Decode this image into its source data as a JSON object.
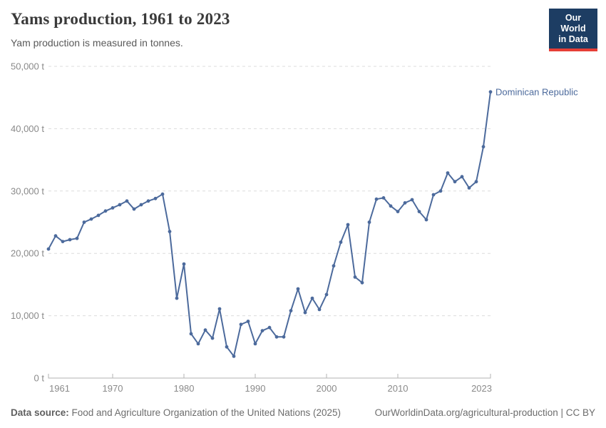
{
  "colors": {
    "series": "#4c6a9c",
    "grid": "#dcdcdc",
    "axis_line": "#b3b3b3",
    "axis_text": "#8a8a8a",
    "logo_bg": "#1d3d63",
    "logo_red": "#e63e36"
  },
  "logo": {
    "line1": "Our World",
    "line2": "in Data"
  },
  "footer": {
    "source_label": "Data source:",
    "source_text": " Food and Agriculture Organization of the United Nations (2025)",
    "right_text": "OurWorldinData.org/agricultural-production | CC BY"
  },
  "chart_data": {
    "type": "line",
    "title": "Yams production, 1961 to 2023",
    "subtitle": "Yam production is measured in tonnes.",
    "xlabel": "",
    "ylabel": "",
    "xlim": [
      1961,
      2023
    ],
    "ylim": [
      0,
      50000
    ],
    "grid": "horizontal-dashed",
    "legend_position": "end-of-line",
    "x": [
      1961,
      1962,
      1963,
      1964,
      1965,
      1966,
      1967,
      1968,
      1969,
      1970,
      1971,
      1972,
      1973,
      1974,
      1975,
      1976,
      1977,
      1978,
      1979,
      1980,
      1981,
      1982,
      1983,
      1984,
      1985,
      1986,
      1987,
      1988,
      1989,
      1990,
      1991,
      1992,
      1993,
      1994,
      1995,
      1996,
      1997,
      1998,
      1999,
      2000,
      2001,
      2002,
      2003,
      2004,
      2005,
      2006,
      2007,
      2008,
      2009,
      2010,
      2011,
      2012,
      2013,
      2014,
      2015,
      2016,
      2017,
      2018,
      2019,
      2020,
      2021,
      2022,
      2023
    ],
    "series": [
      {
        "name": "Dominican Republic",
        "color": "#4c6a9c",
        "values": [
          20700,
          22800,
          21900,
          22200,
          22400,
          25000,
          25500,
          26100,
          26800,
          27300,
          27800,
          28400,
          27100,
          27800,
          28400,
          28800,
          29500,
          23500,
          12800,
          18300,
          7100,
          5500,
          7700,
          6400,
          11100,
          5000,
          3500,
          8600,
          9100,
          5500,
          7600,
          8100,
          6600,
          6600,
          10800,
          14300,
          10500,
          12800,
          11000,
          13400,
          18000,
          21800,
          24600,
          16200,
          15300,
          25000,
          28700,
          28900,
          27600,
          26700,
          28100,
          28600,
          26700,
          25400,
          29400,
          30000,
          32900,
          31500,
          32300,
          30500,
          31500,
          37100,
          45900
        ]
      }
    ],
    "yticks": {
      "values": [
        0,
        10000,
        20000,
        30000,
        40000,
        50000
      ],
      "labels": [
        "0 t",
        "10,000 t",
        "20,000 t",
        "30,000 t",
        "40,000 t",
        "50,000 t"
      ]
    },
    "xticks": {
      "values": [
        1961,
        1970,
        1980,
        1990,
        2000,
        2010,
        2023
      ],
      "labels": [
        "1961",
        "1970",
        "1980",
        "1990",
        "2000",
        "2010",
        "2023"
      ]
    }
  }
}
